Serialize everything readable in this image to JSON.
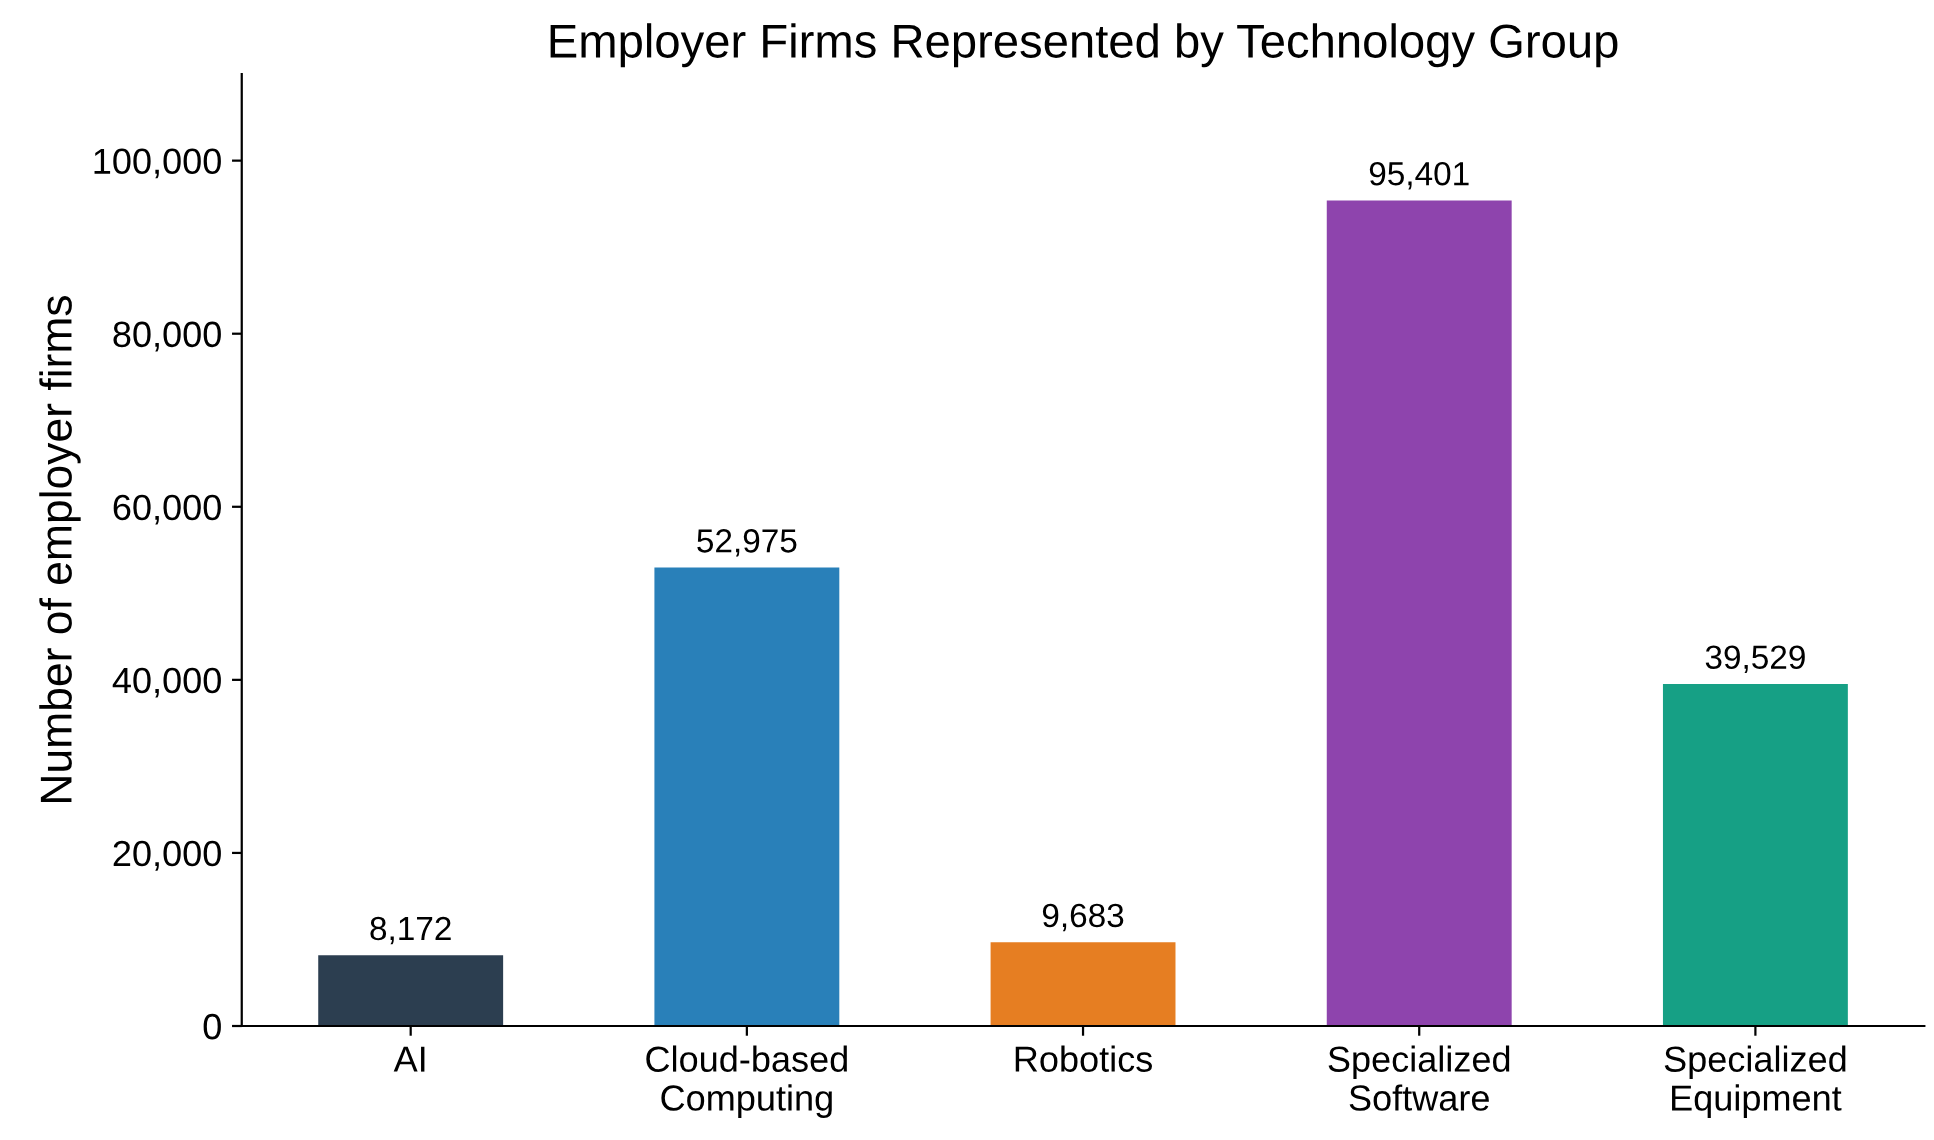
{
  "chart_data": {
    "type": "bar",
    "title": "Employer Firms Represented by Technology Group",
    "ylabel": "Number of employer firms",
    "categories": [
      "AI",
      "Cloud-based\nComputing",
      "Robotics",
      "Specialized\nSoftware",
      "Specialized\nEquipment"
    ],
    "values": [
      8172,
      52975,
      9683,
      95401,
      39529
    ],
    "value_labels": [
      "8,172",
      "52,975",
      "9,683",
      "95,401",
      "39,529"
    ],
    "colors": [
      "#2c3e50",
      "#2980b9",
      "#e67e22",
      "#8e44ad",
      "#16a085"
    ],
    "ylim": [
      0,
      110000
    ],
    "yticks": [
      {
        "value": 0,
        "label": "0"
      },
      {
        "value": 20000,
        "label": "20,000"
      },
      {
        "value": 40000,
        "label": "40,000"
      },
      {
        "value": 60000,
        "label": "60,000"
      },
      {
        "value": 80000,
        "label": "80,000"
      },
      {
        "value": 100000,
        "label": "100,000"
      }
    ],
    "grid": false
  }
}
